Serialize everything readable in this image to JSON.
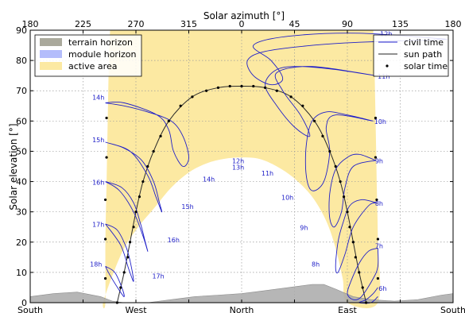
{
  "chart_data": {
    "type": "line",
    "top_axis_label": "Solar azimuth [°]",
    "ylabel": "Solar elevation [°]",
    "xlim": [
      180,
      -180
    ],
    "ylim": [
      0,
      90
    ],
    "top_ticks": [
      "180",
      "225",
      "270",
      "315",
      "0",
      "45",
      "90",
      "135",
      "180"
    ],
    "top_tick_azimuths": [
      180,
      135,
      90,
      45,
      0,
      -45,
      -90,
      -135,
      -180
    ],
    "y_ticks": [
      0,
      10,
      20,
      30,
      40,
      50,
      60,
      70,
      80,
      90
    ],
    "bottom_labels": [
      {
        "text": "South",
        "azimuth": 180
      },
      {
        "text": "West",
        "azimuth": 90
      },
      {
        "text": "North",
        "azimuth": 0
      },
      {
        "text": "East",
        "azimuth": -90
      },
      {
        "text": "South",
        "azimuth": -180
      }
    ],
    "grid": true,
    "legend_left": {
      "placement": "top-left",
      "entries": [
        {
          "label": "terrain horizon",
          "color": "#aaa99c"
        },
        {
          "label": "module horizon",
          "color": "#b4bdfb"
        },
        {
          "label": "active area",
          "color": "#fce9a2"
        }
      ]
    },
    "legend_right": {
      "placement": "top-right",
      "entries": [
        {
          "label": "civil time",
          "color": "#2222cc",
          "style": "line"
        },
        {
          "label": "sun path",
          "color": "#222222",
          "style": "line"
        },
        {
          "label": "solar time",
          "color": "#000000",
          "style": "dots"
        }
      ]
    },
    "active_area": {
      "outer_left": [
        [
          180,
          0
        ],
        [
          175,
          90
        ]
      ],
      "outer_right": [
        [
          -180,
          0
        ],
        [
          -175,
          90
        ]
      ],
      "inner_arch": [
        [
          118,
          0
        ],
        [
          110,
          9
        ],
        [
          100,
          18
        ],
        [
          88,
          25
        ],
        [
          75,
          31
        ],
        [
          60,
          38
        ],
        [
          45,
          43
        ],
        [
          30,
          46
        ],
        [
          15,
          47.5
        ],
        [
          0,
          48
        ],
        [
          -15,
          47.5
        ],
        [
          -30,
          45
        ],
        [
          -45,
          41
        ],
        [
          -60,
          35
        ],
        [
          -72,
          27
        ],
        [
          -80,
          18
        ],
        [
          -86,
          8
        ],
        [
          -90,
          0
        ]
      ],
      "outer_left_edge": [
        [
          116,
          0
        ],
        [
          116,
          20
        ],
        [
          115,
          40
        ],
        [
          114,
          60
        ],
        [
          113,
          80
        ],
        [
          112,
          90
        ]
      ],
      "outer_right_edge": [
        [
          -116,
          0
        ],
        [
          -116,
          20
        ],
        [
          -115,
          40
        ],
        [
          -114,
          60
        ],
        [
          -113,
          80
        ],
        [
          -112,
          90
        ]
      ]
    },
    "terrain_horizon": [
      [
        180,
        2
      ],
      [
        160,
        3
      ],
      [
        140,
        3.5
      ],
      [
        120,
        2
      ],
      [
        110,
        0.5
      ],
      [
        100,
        0
      ],
      [
        80,
        0
      ],
      [
        60,
        1
      ],
      [
        40,
        2
      ],
      [
        20,
        2.5
      ],
      [
        0,
        3
      ],
      [
        -20,
        4
      ],
      [
        -40,
        5
      ],
      [
        -60,
        6
      ],
      [
        -70,
        6
      ],
      [
        -80,
        4.5
      ],
      [
        -95,
        2
      ],
      [
        -110,
        1
      ],
      [
        -130,
        0.5
      ],
      [
        -150,
        1
      ],
      [
        -170,
        2.5
      ],
      [
        -180,
        3
      ]
    ],
    "sun_path": [
      [
        106,
        0
      ],
      [
        100,
        10
      ],
      [
        95,
        20
      ],
      [
        90,
        30
      ],
      [
        84,
        40
      ],
      [
        75,
        50
      ],
      [
        62,
        60
      ],
      [
        42,
        68
      ],
      [
        20,
        71
      ],
      [
        0,
        71.5
      ],
      [
        -20,
        71
      ],
      [
        -42,
        68
      ],
      [
        -62,
        60
      ],
      [
        -75,
        50
      ],
      [
        -84,
        40
      ],
      [
        -90,
        30
      ],
      [
        -95,
        20
      ],
      [
        -100,
        10
      ],
      [
        -106,
        0
      ]
    ],
    "sun_path_dots": [
      [
        106,
        0
      ],
      [
        103,
        5
      ],
      [
        100,
        10
      ],
      [
        97,
        15
      ],
      [
        95,
        20
      ],
      [
        92,
        25
      ],
      [
        90,
        30
      ],
      [
        87,
        35
      ],
      [
        84,
        40
      ],
      [
        80,
        45
      ],
      [
        75,
        50
      ],
      [
        69,
        55
      ],
      [
        62,
        60
      ],
      [
        52,
        65
      ],
      [
        42,
        68
      ],
      [
        30,
        70
      ],
      [
        20,
        71
      ],
      [
        10,
        71.5
      ],
      [
        0,
        71.5
      ],
      [
        -10,
        71.5
      ],
      [
        -20,
        71
      ],
      [
        -30,
        70
      ],
      [
        -42,
        68
      ],
      [
        -52,
        65
      ],
      [
        -62,
        60
      ],
      [
        -69,
        55
      ],
      [
        -75,
        50
      ],
      [
        -80,
        45
      ],
      [
        -84,
        40
      ],
      [
        -87,
        35
      ],
      [
        -90,
        30
      ],
      [
        -92,
        25
      ],
      [
        -95,
        20
      ],
      [
        -97,
        15
      ],
      [
        -100,
        10
      ],
      [
        -103,
        5
      ],
      [
        -106,
        0
      ]
    ],
    "edge_dots_left": [
      [
        115,
        61
      ],
      [
        115,
        48
      ],
      [
        116,
        34
      ],
      [
        116,
        21
      ],
      [
        116,
        8
      ]
    ],
    "edge_dots_right": [
      [
        -114,
        61
      ],
      [
        -114,
        48
      ],
      [
        -115,
        34
      ],
      [
        -116,
        21
      ],
      [
        -116,
        8
      ]
    ],
    "analemmas": [
      {
        "label": "12h",
        "label_at": [
          -123,
          88
        ],
        "points": [
          [
            -175,
            87
          ],
          [
            -100,
            86
          ],
          [
            -60,
            85
          ],
          [
            -20,
            83
          ],
          [
            -5,
            80
          ],
          [
            -10,
            75
          ],
          [
            -25,
            72
          ],
          [
            -35,
            74
          ],
          [
            -25,
            80
          ],
          [
            -10,
            85
          ],
          [
            -40,
            88
          ],
          [
            -100,
            89
          ],
          [
            -175,
            87
          ]
        ]
      },
      {
        "label": "11h",
        "label_at": [
          -121,
          74
        ],
        "points": [
          [
            -114,
            75
          ],
          [
            -80,
            77
          ],
          [
            -50,
            78
          ],
          [
            -30,
            77
          ],
          [
            -20,
            72
          ],
          [
            -30,
            65
          ],
          [
            -45,
            58
          ],
          [
            -58,
            55
          ],
          [
            -50,
            62
          ],
          [
            -35,
            70
          ],
          [
            -30,
            76
          ],
          [
            -60,
            78
          ],
          [
            -114,
            75
          ]
        ]
      },
      {
        "label": "10h",
        "label_at": [
          -118,
          59
        ],
        "points": [
          [
            -112,
            60
          ],
          [
            -90,
            62
          ],
          [
            -72,
            63
          ],
          [
            -60,
            60
          ],
          [
            -55,
            52
          ],
          [
            -55,
            42
          ],
          [
            -60,
            37
          ],
          [
            -70,
            40
          ],
          [
            -75,
            50
          ],
          [
            -72,
            58
          ],
          [
            -80,
            62
          ],
          [
            -112,
            60
          ]
        ]
      },
      {
        "label": "9h",
        "label_at": [
          -117,
          46
        ],
        "points": [
          [
            -114,
            47
          ],
          [
            -100,
            49
          ],
          [
            -90,
            48
          ],
          [
            -80,
            44
          ],
          [
            -75,
            36
          ],
          [
            -75,
            28
          ],
          [
            -79,
            25
          ],
          [
            -85,
            30
          ],
          [
            -88,
            38
          ],
          [
            -95,
            45
          ],
          [
            -114,
            47
          ]
        ]
      },
      {
        "label": "8h",
        "label_at": [
          -117,
          32
        ],
        "points": [
          [
            -115,
            33
          ],
          [
            -102,
            34
          ],
          [
            -92,
            32
          ],
          [
            -86,
            26
          ],
          [
            -82,
            20
          ],
          [
            -80,
            12
          ],
          [
            -82,
            10
          ],
          [
            -88,
            16
          ],
          [
            -95,
            25
          ],
          [
            -108,
            32
          ],
          [
            -115,
            33
          ]
        ]
      },
      {
        "label": "7h",
        "label_at": [
          -117,
          18
        ],
        "points": [
          [
            -116,
            18
          ],
          [
            -108,
            17
          ],
          [
            -100,
            13
          ],
          [
            -93,
            7
          ],
          [
            -90,
            3
          ],
          [
            -95,
            1
          ],
          [
            -102,
            2
          ],
          [
            -112,
            8
          ],
          [
            -116,
            12
          ],
          [
            -116,
            18
          ]
        ]
      },
      {
        "label": "6h",
        "label_at": [
          -120,
          4
        ],
        "points": [
          [
            -116,
            5
          ],
          [
            -112,
            3
          ],
          [
            -106,
            1
          ],
          [
            -100,
            0
          ],
          [
            -110,
            0
          ],
          [
            -116,
            2
          ]
        ]
      },
      {
        "label": "14h",
        "label_at": [
          122,
          67
        ],
        "points": [
          [
            116,
            66
          ],
          [
            100,
            65
          ],
          [
            80,
            63
          ],
          [
            60,
            60
          ],
          [
            50,
            55
          ],
          [
            45,
            48
          ],
          [
            50,
            45
          ],
          [
            58,
            50
          ],
          [
            62,
            57
          ],
          [
            72,
            62
          ],
          [
            100,
            66
          ],
          [
            116,
            66
          ]
        ]
      },
      {
        "label": "15h",
        "label_at": [
          122,
          53
        ],
        "points": [
          [
            116,
            53
          ],
          [
            100,
            51
          ],
          [
            85,
            47
          ],
          [
            75,
            40
          ],
          [
            70,
            33
          ],
          [
            68,
            30
          ],
          [
            73,
            35
          ],
          [
            80,
            42
          ],
          [
            95,
            50
          ],
          [
            116,
            53
          ]
        ]
      },
      {
        "label": "16h",
        "label_at": [
          122,
          39
        ],
        "points": [
          [
            116,
            40
          ],
          [
            102,
            38
          ],
          [
            92,
            33
          ],
          [
            86,
            26
          ],
          [
            82,
            20
          ],
          [
            80,
            17
          ],
          [
            84,
            22
          ],
          [
            92,
            30
          ],
          [
            104,
            37
          ],
          [
            116,
            40
          ]
        ]
      },
      {
        "label": "17h",
        "label_at": [
          122,
          25
        ],
        "points": [
          [
            116,
            26
          ],
          [
            106,
            24
          ],
          [
            98,
            18
          ],
          [
            94,
            12
          ],
          [
            92,
            7
          ],
          [
            96,
            11
          ],
          [
            103,
            19
          ],
          [
            116,
            26
          ]
        ]
      },
      {
        "label": "18h",
        "label_at": [
          124,
          12
        ],
        "points": [
          [
            116,
            12
          ],
          [
            108,
            10
          ],
          [
            102,
            5
          ],
          [
            100,
            2
          ],
          [
            104,
            4
          ],
          [
            112,
            9
          ],
          [
            116,
            12
          ]
        ]
      }
    ],
    "annotations": [
      {
        "text": "12h",
        "azimuth": 3,
        "elevation": 46
      },
      {
        "text": "13h",
        "azimuth": 3,
        "elevation": 44
      },
      {
        "text": "14h",
        "azimuth": 28,
        "elevation": 40
      },
      {
        "text": "11h",
        "azimuth": -22,
        "elevation": 42
      },
      {
        "text": "10h",
        "azimuth": -39,
        "elevation": 34
      },
      {
        "text": "9h",
        "azimuth": -53,
        "elevation": 24
      },
      {
        "text": "8h",
        "azimuth": -63,
        "elevation": 12
      },
      {
        "text": "15h",
        "azimuth": 46,
        "elevation": 31
      },
      {
        "text": "16h",
        "azimuth": 58,
        "elevation": 20
      },
      {
        "text": "17h",
        "azimuth": 71,
        "elevation": 8
      }
    ]
  }
}
